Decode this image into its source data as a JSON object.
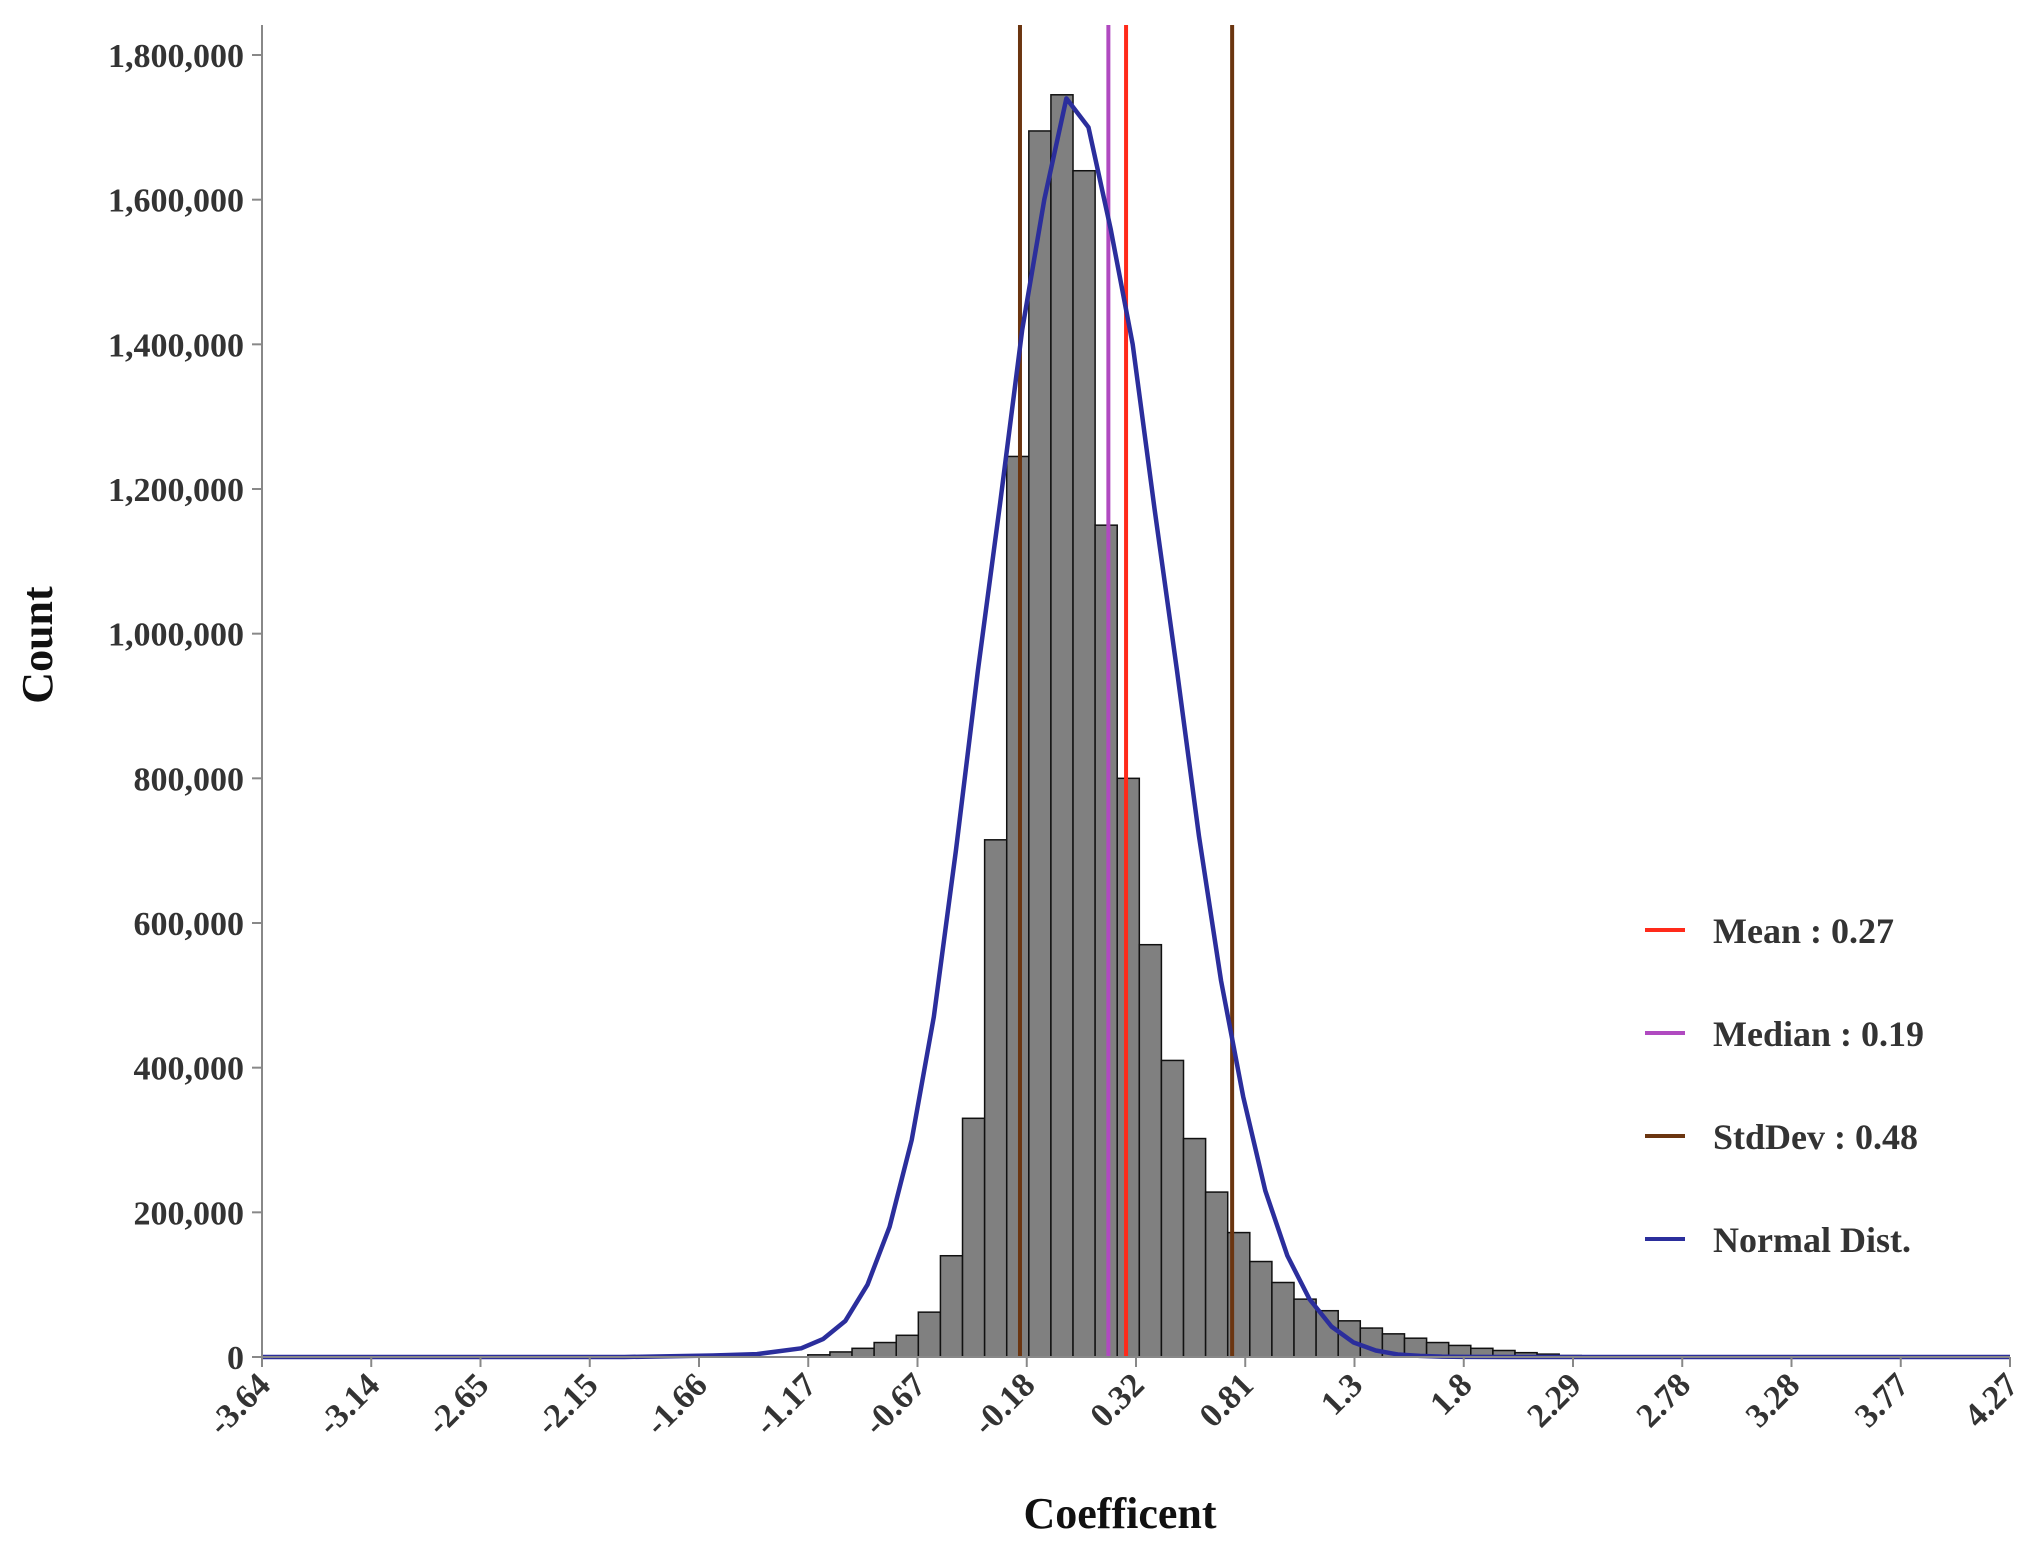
{
  "chart_data": {
    "type": "bar",
    "xlabel": "Coefficent",
    "ylabel": "Count",
    "ylim": [
      0,
      1800000
    ],
    "y_ticks": [
      0,
      200000,
      400000,
      600000,
      800000,
      1000000,
      1200000,
      1400000,
      1600000,
      1800000
    ],
    "y_tick_labels": [
      "0",
      "200,000",
      "400,000",
      "600,000",
      "800,000",
      "1,000,000",
      "1,200,000",
      "1,400,000",
      "1,600,000",
      "1,800,000"
    ],
    "xlim": [
      -3.64,
      4.27
    ],
    "x_tick_labels": [
      "-3.64",
      "-3.14",
      "-2.65",
      "-2.15",
      "-1.66",
      "-1.17",
      "-0.67",
      "-0.18",
      "0.32",
      "0.81",
      "1.3",
      "1.8",
      "2.29",
      "2.78",
      "3.28",
      "3.77",
      "4.27"
    ],
    "grid": false,
    "legend_position": "right",
    "histogram": {
      "bin_start": -1.17,
      "bin_width": 0.1,
      "color": "#808080",
      "counts": [
        3000,
        7000,
        12000,
        20000,
        30000,
        62000,
        140000,
        330000,
        715000,
        1245000,
        1695000,
        1745000,
        1640000,
        1150000,
        800000,
        570000,
        410000,
        302000,
        228000,
        172000,
        132000,
        103000,
        80000,
        64000,
        50000,
        40000,
        32000,
        26000,
        20000,
        16000,
        12000,
        9000,
        6000,
        4000,
        2000,
        1000
      ]
    },
    "normal_curve": {
      "name": "Normal Dist.",
      "color": "#2b2e9c",
      "x": [
        -3.64,
        -2.5,
        -2.0,
        -1.6,
        -1.4,
        -1.2,
        -1.1,
        -1.0,
        -0.9,
        -0.8,
        -0.7,
        -0.6,
        -0.5,
        -0.4,
        -0.3,
        -0.2,
        -0.1,
        0.0,
        0.1,
        0.2,
        0.3,
        0.4,
        0.5,
        0.6,
        0.7,
        0.8,
        0.9,
        1.0,
        1.1,
        1.2,
        1.3,
        1.4,
        1.5,
        1.6,
        1.7,
        1.8,
        2.0,
        2.4,
        3.0,
        4.27
      ],
      "y": [
        0,
        0,
        0,
        2000,
        4000,
        12000,
        25000,
        50000,
        100000,
        180000,
        300000,
        470000,
        700000,
        950000,
        1180000,
        1420000,
        1600000,
        1740000,
        1700000,
        1560000,
        1400000,
        1170000,
        950000,
        720000,
        520000,
        360000,
        230000,
        140000,
        80000,
        42000,
        20000,
        9000,
        3500,
        1500,
        500,
        200,
        0,
        0,
        0,
        0
      ]
    },
    "lines": [
      {
        "name": "Mean : 0.27",
        "x": 0.27,
        "color": "#ff2a1a"
      },
      {
        "name": "Median : 0.19",
        "x": 0.19,
        "color": "#b04ac0"
      },
      {
        "name": "StdDev : 0.48",
        "x": [
          -0.21,
          0.75
        ],
        "color": "#6b3510"
      }
    ]
  },
  "legend": [
    {
      "label": "Mean : 0.27",
      "color": "#ff2a1a"
    },
    {
      "label": "Median : 0.19",
      "color": "#b04ac0"
    },
    {
      "label": "StdDev : 0.48",
      "color": "#6b3510"
    },
    {
      "label": "Normal Dist.",
      "color": "#2b2e9c"
    }
  ]
}
